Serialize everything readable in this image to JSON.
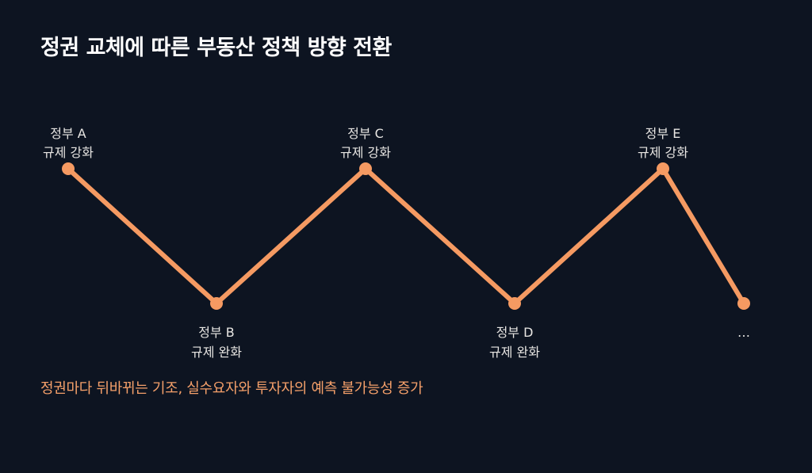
{
  "title": "정권 교체에 따른 부동산 정책 방향 전환",
  "caption": "정권마다 뒤바뀌는 기조, 실수요자와 투자자의 예측 불가능성 증가",
  "colors": {
    "background": "#0d1421",
    "line": "#f59a62",
    "caption": "#f5a06a"
  },
  "nodes": [
    {
      "line1": "정부 A",
      "line2": "규제 강화",
      "level": "high"
    },
    {
      "line1": "정부 B",
      "line2": "규제 완화",
      "level": "low"
    },
    {
      "line1": "정부 C",
      "line2": "규제 강화",
      "level": "high"
    },
    {
      "line1": "정부 D",
      "line2": "규제 완화",
      "level": "low"
    },
    {
      "line1": "정부 E",
      "line2": "규제 강화",
      "level": "high"
    },
    {
      "line1": "…",
      "line2": "",
      "level": "low"
    }
  ]
}
